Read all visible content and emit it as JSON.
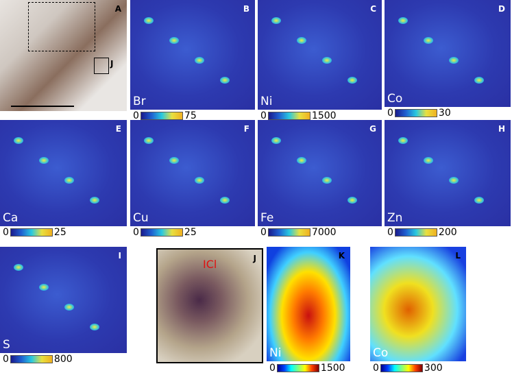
{
  "panels": [
    {
      "letter": "A",
      "box_label": "J"
    },
    {
      "letter": "B",
      "element": "Br",
      "scale_min": 0,
      "scale_max": 75
    },
    {
      "letter": "C",
      "element": "Ni",
      "scale_min": 0,
      "scale_max": 1500
    },
    {
      "letter": "D",
      "element": "Co",
      "scale_min": 0,
      "scale_max": 30
    },
    {
      "letter": "E",
      "element": "Ca",
      "scale_min": 0,
      "scale_max": 25
    },
    {
      "letter": "F",
      "element": "Cu",
      "scale_min": 0,
      "scale_max": 25
    },
    {
      "letter": "G",
      "element": "Fe",
      "scale_min": 0,
      "scale_max": 7000
    },
    {
      "letter": "H",
      "element": "Zn",
      "scale_min": 0,
      "scale_max": 200
    },
    {
      "letter": "I",
      "element": "S",
      "scale_min": 0,
      "scale_max": 800
    },
    {
      "letter": "J",
      "annotation": "ICl"
    },
    {
      "letter": "K",
      "element": "Ni",
      "scale_min": 0,
      "scale_max": 1500
    },
    {
      "letter": "L",
      "element": "Co",
      "scale_min": 0,
      "scale_max": 300
    }
  ]
}
